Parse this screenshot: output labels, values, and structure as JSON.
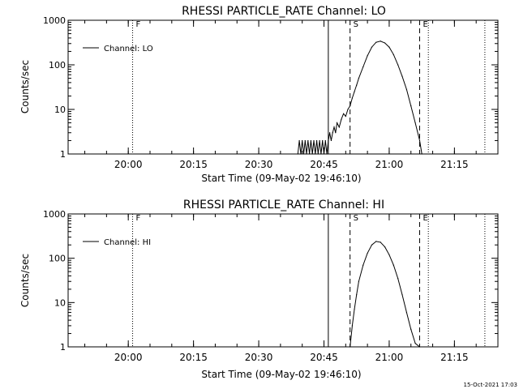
{
  "footer_timestamp": "15-Oct-2021 17:03",
  "colors": {
    "background": "#ffffff",
    "foreground": "#000000"
  },
  "chart_data": [
    {
      "type": "line",
      "title": "RHESSI PARTICLE_RATE Channel: LO",
      "xlabel": "Start Time (09-May-02 19:46:10)",
      "ylabel": "Counts/sec",
      "y_scale": "log",
      "ylim": [
        1,
        1000
      ],
      "y_ticks": [
        1,
        10,
        100,
        1000
      ],
      "xlim": [
        "19:46:10",
        "21:25:00"
      ],
      "x_ticks": [
        "20:00",
        "20:15",
        "20:30",
        "20:45",
        "21:00",
        "21:15"
      ],
      "legend": {
        "position": "top-left",
        "entries": [
          "Channel: LO"
        ]
      },
      "markers": [
        {
          "label": "F",
          "time": "20:01",
          "style": "dotted"
        },
        {
          "label": "",
          "time": "20:46",
          "style": "solid"
        },
        {
          "label": "S",
          "time": "20:51",
          "style": "dashed"
        },
        {
          "label": "E",
          "time": "21:07",
          "style": "dashed"
        },
        {
          "label": "",
          "time": "21:09",
          "style": "dotted"
        },
        {
          "label": "",
          "time": "21:22",
          "style": "dotted"
        }
      ],
      "series": [
        {
          "name": "Channel: LO",
          "x": [
            "20:39:00",
            "20:39:20",
            "20:39:40",
            "20:40:00",
            "20:40:20",
            "20:40:40",
            "20:41:00",
            "20:41:20",
            "20:41:40",
            "20:42:00",
            "20:42:20",
            "20:42:40",
            "20:43:00",
            "20:43:20",
            "20:43:40",
            "20:44:00",
            "20:44:20",
            "20:44:40",
            "20:45:00",
            "20:45:20",
            "20:45:40",
            "20:46:00",
            "20:46:20",
            "20:46:40",
            "20:47:00",
            "20:47:20",
            "20:47:40",
            "20:48:00",
            "20:48:30",
            "20:49:00",
            "20:49:30",
            "20:50:00",
            "20:50:30",
            "20:51:00",
            "20:51:30",
            "20:52:00",
            "20:52:30",
            "20:53:00",
            "20:54:00",
            "20:55:00",
            "20:56:00",
            "20:57:00",
            "20:58:00",
            "20:59:00",
            "21:00:00",
            "21:01:00",
            "21:02:00",
            "21:03:00",
            "21:04:00",
            "21:05:00",
            "21:06:00",
            "21:07:00",
            "21:07:30"
          ],
          "values": [
            1,
            2,
            1,
            2,
            1,
            2,
            1,
            2,
            1,
            2,
            1,
            2,
            1,
            2,
            1,
            2,
            1,
            2,
            1,
            2,
            1,
            2,
            3,
            2,
            3,
            4,
            3,
            5,
            4,
            6,
            8,
            7,
            10,
            12,
            18,
            25,
            35,
            50,
            90,
            160,
            250,
            320,
            340,
            310,
            250,
            170,
            100,
            55,
            28,
            12,
            5,
            2,
            1
          ]
        }
      ]
    },
    {
      "type": "line",
      "title": "RHESSI PARTICLE_RATE Channel: HI",
      "xlabel": "Start Time (09-May-02 19:46:10)",
      "ylabel": "Counts/sec",
      "y_scale": "log",
      "ylim": [
        1,
        1000
      ],
      "y_ticks": [
        1,
        10,
        100,
        1000
      ],
      "xlim": [
        "19:46:10",
        "21:25:00"
      ],
      "x_ticks": [
        "20:00",
        "20:15",
        "20:30",
        "20:45",
        "21:00",
        "21:15"
      ],
      "legend": {
        "position": "top-left",
        "entries": [
          "Channel: HI"
        ]
      },
      "markers": [
        {
          "label": "F",
          "time": "20:01",
          "style": "dotted"
        },
        {
          "label": "",
          "time": "20:46",
          "style": "solid"
        },
        {
          "label": "S",
          "time": "20:51",
          "style": "dashed"
        },
        {
          "label": "E",
          "time": "21:07",
          "style": "dashed"
        },
        {
          "label": "",
          "time": "21:09",
          "style": "dotted"
        },
        {
          "label": "",
          "time": "21:22",
          "style": "dotted"
        }
      ],
      "series": [
        {
          "name": "Channel: HI",
          "x": [
            "20:51:00",
            "20:51:30",
            "20:52:00",
            "20:52:30",
            "20:53:00",
            "20:54:00",
            "20:55:00",
            "20:56:00",
            "20:57:00",
            "20:58:00",
            "20:59:00",
            "21:00:00",
            "21:01:00",
            "21:02:00",
            "21:03:00",
            "21:04:00",
            "21:05:00",
            "21:06:00",
            "21:07:00"
          ],
          "values": [
            1,
            3,
            7,
            15,
            30,
            70,
            130,
            200,
            240,
            230,
            180,
            120,
            70,
            35,
            15,
            6,
            2.5,
            1.2,
            1
          ]
        }
      ]
    }
  ]
}
